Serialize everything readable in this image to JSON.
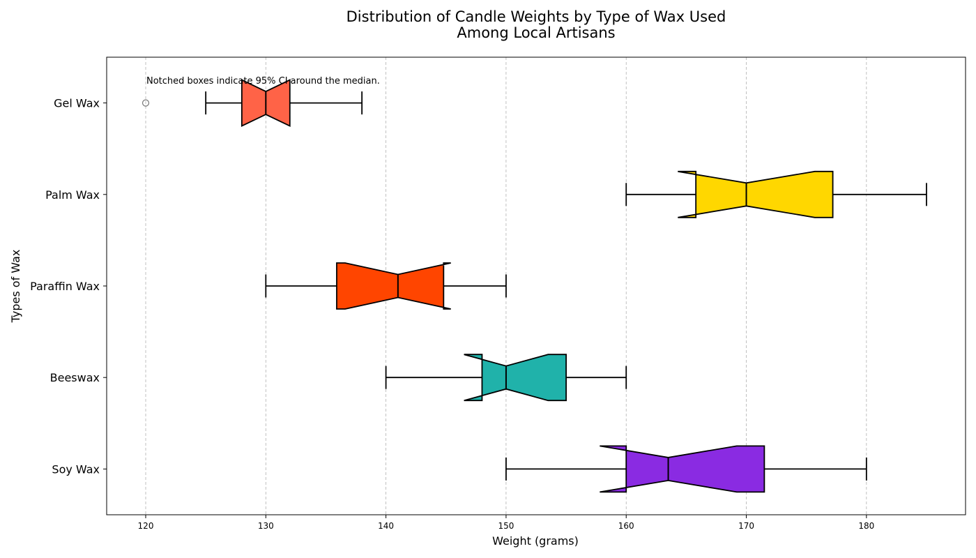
{
  "chart_data": {
    "type": "box",
    "orientation": "horizontal",
    "notched": true,
    "title_lines": [
      "Distribution of Candle Weights by Type of Wax Used",
      "Among Local Artisans"
    ],
    "xlabel": "Weight (grams)",
    "ylabel": "Types of Wax",
    "xlim": [
      116.75,
      188.25
    ],
    "xticks": [
      120,
      130,
      140,
      150,
      160,
      170,
      180
    ],
    "grid": "vertical dashed",
    "annotation": "Notched boxes indicate 95% CI around the median.",
    "categories": [
      "Soy Wax",
      "Beeswax",
      "Paraffin Wax",
      "Palm Wax",
      "Gel Wax"
    ],
    "boxes": [
      {
        "name": "Soy Wax",
        "whisker_low": 150,
        "q1": 160,
        "median": 163.5,
        "q3": 171.5,
        "whisker_high": 180,
        "notch_low": 157.8,
        "notch_high": 169.2,
        "outliers": [],
        "color": "#8A2BE2"
      },
      {
        "name": "Beeswax",
        "whisker_low": 140,
        "q1": 148,
        "median": 150,
        "q3": 155,
        "whisker_high": 160,
        "notch_low": 146.5,
        "notch_high": 153.5,
        "outliers": [],
        "color": "#20B2AA"
      },
      {
        "name": "Paraffin Wax",
        "whisker_low": 130,
        "q1": 135.9,
        "median": 141,
        "q3": 144.8,
        "whisker_high": 150,
        "notch_low": 136.6,
        "notch_high": 145.4,
        "outliers": [],
        "color": "#FF4500"
      },
      {
        "name": "Palm Wax",
        "whisker_low": 160,
        "q1": 165.8,
        "median": 170,
        "q3": 177.2,
        "whisker_high": 185,
        "notch_low": 164.3,
        "notch_high": 175.7,
        "outliers": [],
        "color": "#FFD700"
      },
      {
        "name": "Gel Wax",
        "whisker_low": 125,
        "q1": 128,
        "median": 130,
        "q3": 132,
        "whisker_high": 138,
        "notch_low": 128,
        "notch_high": 132,
        "outliers": [
          120
        ],
        "color": "#FF6347"
      }
    ]
  }
}
